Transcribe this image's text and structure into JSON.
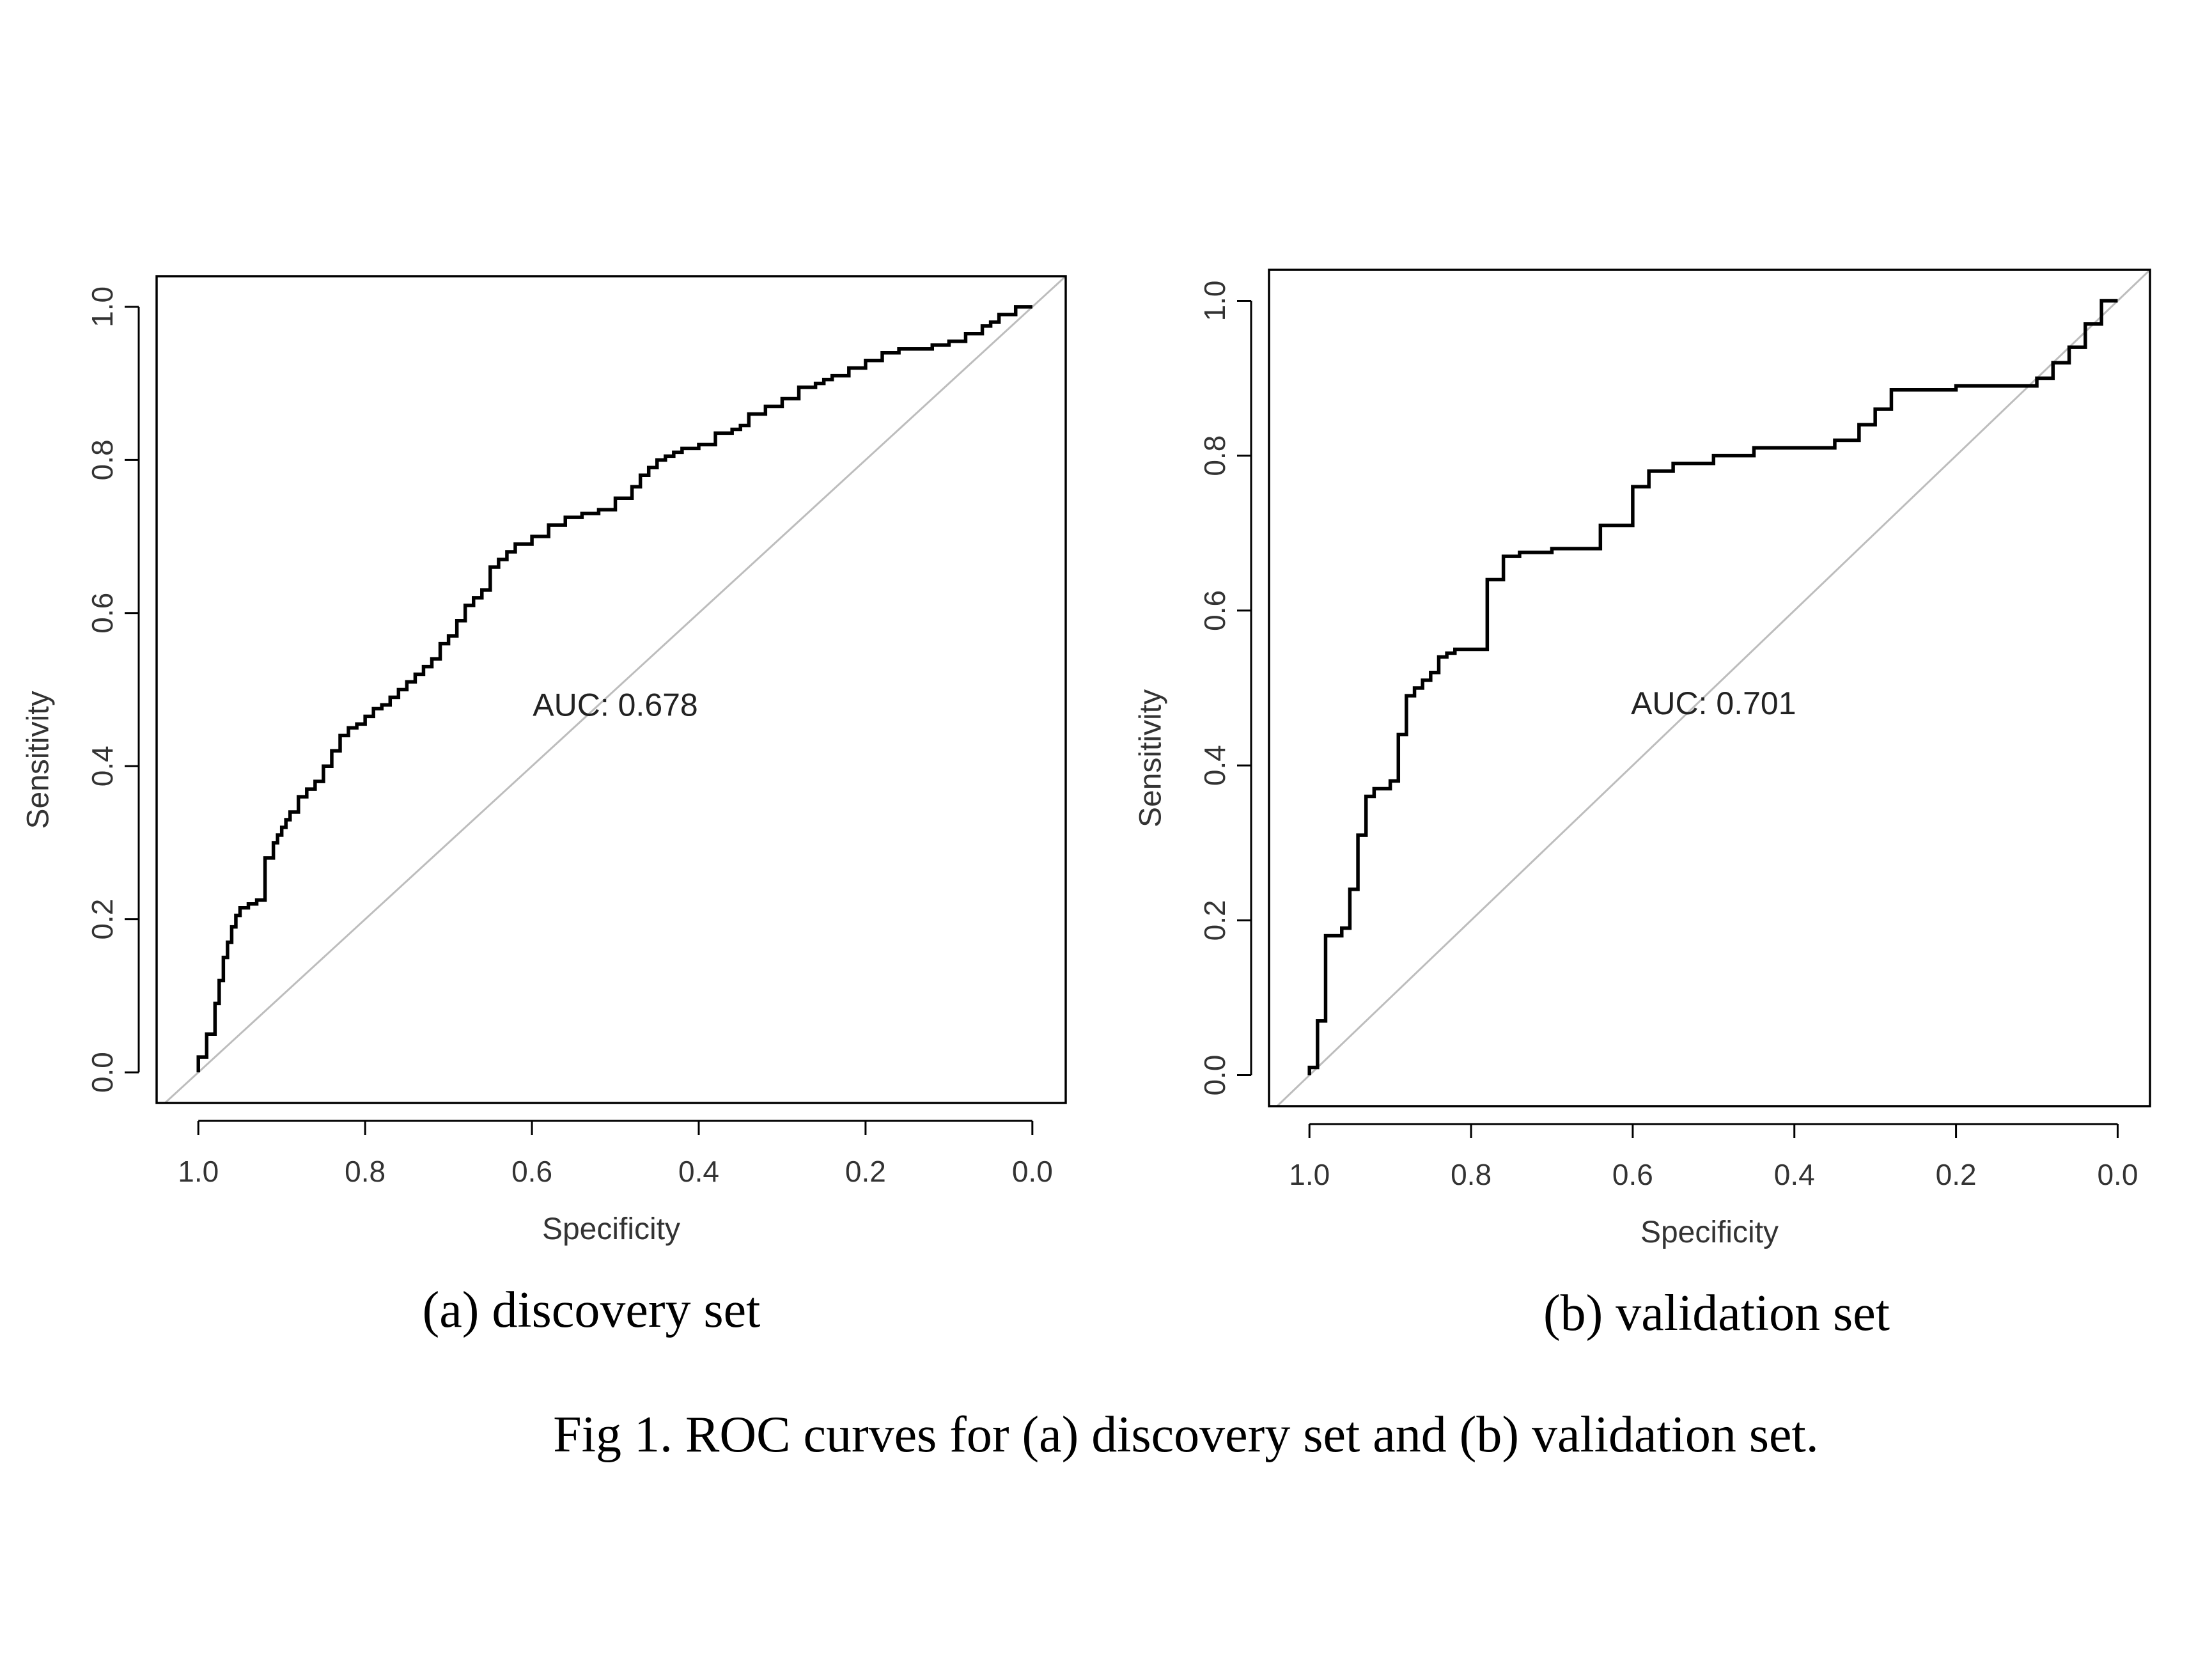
{
  "figure_caption": "Fig 1. ROC curves for (a) discovery set and (b) validation set.",
  "colors": {
    "curve": "#000000",
    "diagonal": "#bdbdbd",
    "frame": "#000000",
    "text": "#333333"
  },
  "chart_data": [
    {
      "type": "line",
      "subtitle": "(a) discovery set",
      "xlabel": "Specificity",
      "ylabel": "Sensitivity",
      "annotation": "AUC: 0.678",
      "x_reversed": true,
      "xlim": [
        1.05,
        -0.04
      ],
      "ylim": [
        -0.04,
        1.04
      ],
      "xticks": [
        "1.0",
        "0.8",
        "0.6",
        "0.4",
        "0.2",
        "0.0"
      ],
      "yticks": [
        "0.0",
        "0.2",
        "0.4",
        "0.6",
        "0.8",
        "1.0"
      ],
      "reference_line": "diagonal",
      "series": [
        {
          "x": [
            1.0,
            0.99,
            0.98,
            0.975,
            0.97,
            0.965,
            0.96,
            0.955,
            0.95,
            0.94,
            0.93,
            0.92,
            0.91,
            0.905,
            0.9,
            0.895,
            0.89,
            0.88,
            0.87,
            0.86,
            0.85,
            0.84,
            0.83,
            0.82,
            0.81,
            0.8,
            0.79,
            0.78,
            0.77,
            0.76,
            0.75,
            0.74,
            0.73,
            0.72,
            0.71,
            0.7,
            0.69,
            0.68,
            0.67,
            0.66,
            0.65,
            0.64,
            0.63,
            0.62,
            0.6,
            0.58,
            0.56,
            0.54,
            0.52,
            0.5,
            0.48,
            0.47,
            0.46,
            0.45,
            0.44,
            0.43,
            0.42,
            0.4,
            0.38,
            0.36,
            0.35,
            0.34,
            0.32,
            0.3,
            0.28,
            0.26,
            0.25,
            0.24,
            0.22,
            0.2,
            0.18,
            0.16,
            0.14,
            0.12,
            0.1,
            0.08,
            0.06,
            0.05,
            0.04,
            0.02,
            0.0
          ],
          "y": [
            0.0,
            0.02,
            0.05,
            0.09,
            0.12,
            0.15,
            0.17,
            0.19,
            0.205,
            0.215,
            0.22,
            0.225,
            0.28,
            0.3,
            0.31,
            0.32,
            0.33,
            0.34,
            0.36,
            0.37,
            0.38,
            0.4,
            0.42,
            0.44,
            0.45,
            0.455,
            0.465,
            0.475,
            0.48,
            0.49,
            0.5,
            0.51,
            0.52,
            0.53,
            0.54,
            0.56,
            0.57,
            0.59,
            0.61,
            0.62,
            0.63,
            0.66,
            0.67,
            0.68,
            0.69,
            0.7,
            0.715,
            0.725,
            0.73,
            0.735,
            0.75,
            0.765,
            0.78,
            0.79,
            0.8,
            0.805,
            0.81,
            0.815,
            0.82,
            0.835,
            0.84,
            0.845,
            0.86,
            0.87,
            0.88,
            0.895,
            0.9,
            0.905,
            0.91,
            0.92,
            0.93,
            0.94,
            0.945,
            0.945,
            0.95,
            0.955,
            0.965,
            0.975,
            0.98,
            0.99,
            1.0
          ]
        }
      ]
    },
    {
      "type": "line",
      "subtitle": "(b) validation set",
      "xlabel": "Specificity",
      "ylabel": "Sensitivity",
      "annotation": "AUC: 0.701",
      "x_reversed": true,
      "xlim": [
        1.05,
        -0.04
      ],
      "ylim": [
        -0.04,
        1.04
      ],
      "xticks": [
        "1.0",
        "0.8",
        "0.6",
        "0.4",
        "0.2",
        "0.0"
      ],
      "yticks": [
        "0.0",
        "0.2",
        "0.4",
        "0.6",
        "0.8",
        "1.0"
      ],
      "reference_line": "diagonal",
      "series": [
        {
          "step": true,
          "x": [
            1.0,
            0.99,
            0.98,
            0.97,
            0.96,
            0.95,
            0.94,
            0.93,
            0.92,
            0.91,
            0.9,
            0.89,
            0.88,
            0.87,
            0.86,
            0.85,
            0.84,
            0.83,
            0.82,
            0.8,
            0.78,
            0.76,
            0.74,
            0.72,
            0.7,
            0.66,
            0.64,
            0.6,
            0.58,
            0.55,
            0.5,
            0.45,
            0.42,
            0.35,
            0.32,
            0.3,
            0.28,
            0.26,
            0.2,
            0.15,
            0.1,
            0.08,
            0.06,
            0.04,
            0.02,
            0.0
          ],
          "y": [
            0.0,
            0.01,
            0.07,
            0.18,
            0.18,
            0.19,
            0.24,
            0.31,
            0.36,
            0.37,
            0.37,
            0.38,
            0.44,
            0.49,
            0.5,
            0.51,
            0.52,
            0.54,
            0.545,
            0.55,
            0.55,
            0.64,
            0.67,
            0.675,
            0.675,
            0.68,
            0.68,
            0.71,
            0.76,
            0.78,
            0.79,
            0.8,
            0.81,
            0.81,
            0.82,
            0.84,
            0.86,
            0.885,
            0.885,
            0.89,
            0.89,
            0.9,
            0.92,
            0.94,
            0.97,
            1.0
          ]
        }
      ]
    }
  ]
}
